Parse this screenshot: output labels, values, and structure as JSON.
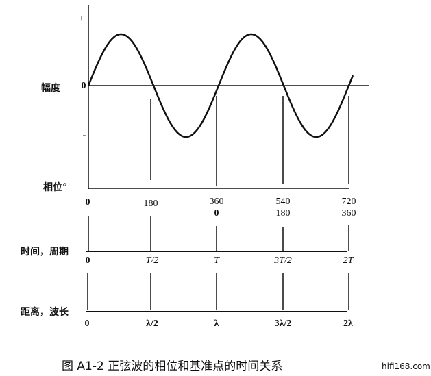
{
  "axis_labels": {
    "amplitude": "幅度",
    "phase": "相位°",
    "time": "时间，周期",
    "distance": "距离，波长"
  },
  "amplitude_ticks": {
    "plus": "+",
    "zero": "0",
    "minus": "-"
  },
  "phase_row1": [
    "0",
    "180",
    "360",
    "540",
    "720"
  ],
  "phase_row2": [
    "0",
    "180",
    "360"
  ],
  "time_ticks": [
    "0",
    "T/2",
    "T",
    "3T/2",
    "2T"
  ],
  "distance_ticks": [
    "0",
    "λ/2",
    "λ",
    "3λ/2",
    "2λ"
  ],
  "caption": "图 A1-2   正弦波的相位和基准点的时间关系",
  "watermark": "hifi168.com"
}
